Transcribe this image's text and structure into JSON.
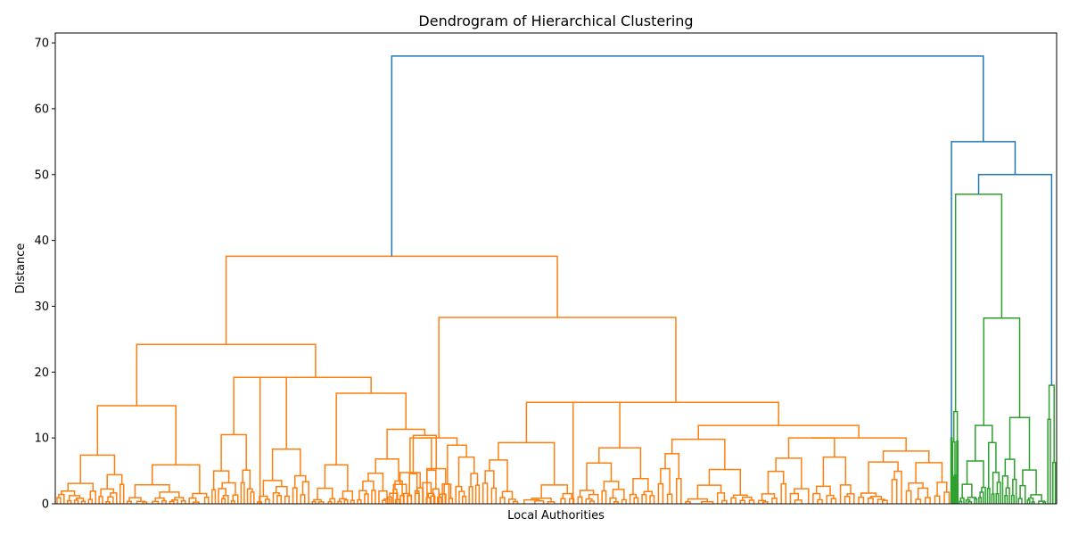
{
  "chart_data": {
    "type": "dendrogram",
    "title": "Dendrogram of Hierarchical Clustering",
    "xlabel": "Local Authorities",
    "ylabel": "Distance",
    "ylim": [
      0,
      71.5
    ],
    "yticks": [
      0,
      10,
      20,
      30,
      40,
      50,
      60,
      70
    ],
    "x_tick_labels_shown": false,
    "grid": false,
    "leaf_count_estimate": 360,
    "colors": {
      "above_threshold": "#1f77b4",
      "cluster_1": "#ff7f0e",
      "cluster_2": "#2ca02c"
    },
    "root_merge": {
      "height": 68.0,
      "left_child_height": 37.6,
      "right_child_height": 55.0
    },
    "clusters": [
      {
        "name": "orange",
        "color": "#ff7f0e",
        "root_height": 37.6,
        "major_merge_heights": [
          37.6,
          28.3,
          24.2,
          19.2,
          16.8,
          15.4,
          14.9,
          11.9,
          11.3,
          10.5,
          10.4,
          10.0,
          10.0,
          9.8,
          9.3,
          8.9,
          8.5,
          8.0,
          7.4,
          7.0,
          6.8,
          5.9,
          5.3,
          4.6,
          4.5
        ]
      },
      {
        "name": "green",
        "color": "#2ca02c",
        "root_height": 47.0,
        "major_merge_heights": [
          47.0,
          28.2,
          25.9,
          19.7,
          18.3,
          18.0,
          13.1,
          11.9,
          11.8,
          11.7,
          10.3,
          9.6,
          7.0,
          6.5
        ]
      }
    ],
    "above_threshold_merges": [
      68.0,
      55.0,
      50.0
    ]
  }
}
